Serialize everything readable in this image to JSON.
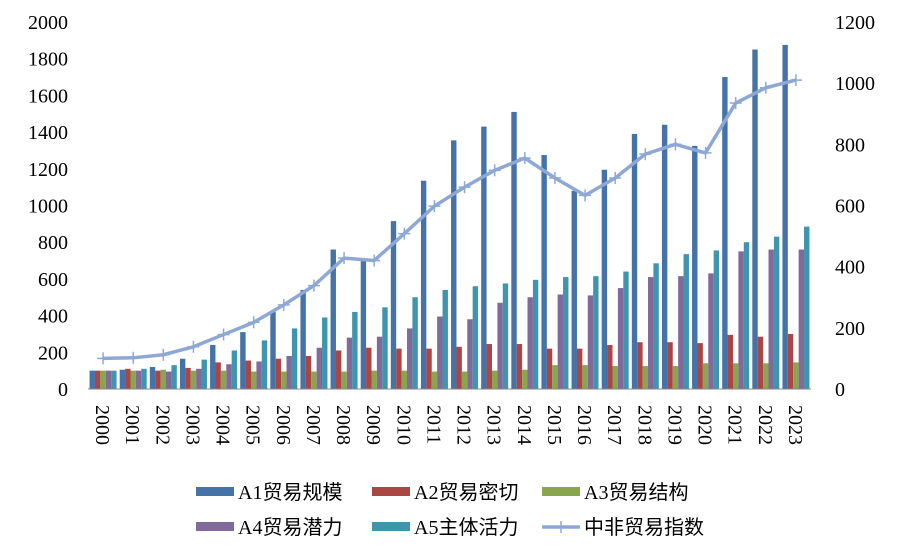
{
  "chart_data": {
    "type": "bar+line",
    "categories": [
      "2000",
      "2001",
      "2002",
      "2003",
      "2004",
      "2005",
      "2006",
      "2007",
      "2008",
      "2009",
      "2010",
      "2011",
      "2012",
      "2013",
      "2014",
      "2015",
      "2016",
      "2017",
      "2018",
      "2019",
      "2020",
      "2021",
      "2022",
      "2023"
    ],
    "series": [
      {
        "name": "A1贸易规模",
        "type": "bar",
        "axis": "left",
        "color": "#4572A7",
        "values": [
          100,
          105,
          120,
          165,
          240,
          310,
          420,
          540,
          760,
          700,
          915,
          1135,
          1355,
          1430,
          1510,
          1275,
          1080,
          1195,
          1390,
          1440,
          1325,
          1700,
          1850,
          1875
        ]
      },
      {
        "name": "A2贸易密切",
        "type": "bar",
        "axis": "left",
        "color": "#AA4643",
        "values": [
          100,
          110,
          100,
          115,
          145,
          155,
          165,
          180,
          210,
          225,
          220,
          220,
          230,
          245,
          245,
          220,
          220,
          240,
          255,
          255,
          250,
          295,
          285,
          300
        ]
      },
      {
        "name": "A3贸易结构",
        "type": "bar",
        "axis": "left",
        "color": "#89A54E",
        "values": [
          100,
          100,
          105,
          100,
          100,
          95,
          95,
          95,
          95,
          100,
          100,
          95,
          95,
          100,
          105,
          130,
          130,
          125,
          125,
          125,
          140,
          140,
          140,
          145
        ]
      },
      {
        "name": "A4贸易潜力",
        "type": "bar",
        "axis": "left",
        "color": "#80699B",
        "values": [
          100,
          100,
          95,
          110,
          135,
          150,
          180,
          225,
          280,
          285,
          330,
          395,
          380,
          470,
          500,
          515,
          510,
          550,
          610,
          615,
          630,
          750,
          760,
          760
        ]
      },
      {
        "name": "A5主体活力",
        "type": "bar",
        "axis": "left",
        "color": "#3D96AE",
        "values": [
          100,
          110,
          130,
          160,
          210,
          265,
          330,
          390,
          420,
          445,
          500,
          540,
          560,
          575,
          595,
          610,
          615,
          640,
          685,
          735,
          755,
          800,
          830,
          885
        ]
      },
      {
        "name": "中非贸易指数",
        "type": "line",
        "axis": "right",
        "color": "#8EA8D6",
        "values": [
          100,
          102,
          112,
          138,
          178,
          218,
          275,
          338,
          428,
          420,
          508,
          598,
          660,
          715,
          755,
          690,
          633,
          690,
          768,
          800,
          772,
          935,
          985,
          1010
        ]
      }
    ],
    "left_axis": {
      "min": 0,
      "max": 2000,
      "ticks": [
        0,
        200,
        400,
        600,
        800,
        1000,
        1200,
        1400,
        1600,
        1800,
        2000
      ]
    },
    "right_axis": {
      "min": 0,
      "max": 1200,
      "ticks": [
        0,
        200,
        400,
        600,
        800,
        1000,
        1200
      ]
    },
    "legend_position": "bottom",
    "grid": false,
    "title": ""
  }
}
